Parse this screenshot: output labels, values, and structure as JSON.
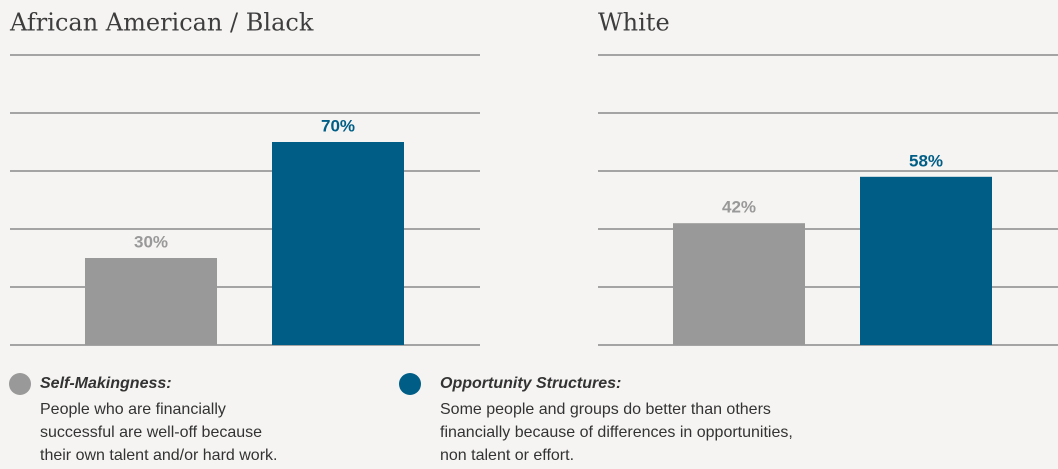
{
  "chart_data": [
    {
      "type": "bar",
      "title": "African American / Black",
      "categories": [
        null,
        null
      ],
      "values": [
        30,
        70
      ],
      "value_labels": [
        "30%",
        "70%"
      ],
      "colors": [
        "#999999",
        "#005e86"
      ],
      "ylim": [
        0,
        100
      ],
      "yticks": [
        0,
        20,
        40,
        60,
        80,
        100
      ],
      "grid": true
    },
    {
      "type": "bar",
      "title": "White",
      "categories": [
        null,
        null
      ],
      "values": [
        42,
        58
      ],
      "value_labels": [
        "42%",
        "58%"
      ],
      "colors": [
        "#999999",
        "#005e86"
      ],
      "ylim": [
        0,
        100
      ],
      "yticks": [
        0,
        20,
        40,
        60,
        80,
        100
      ],
      "grid": true
    }
  ],
  "legend": [
    {
      "name": "Self-Makingness:",
      "color": "#999999",
      "description": [
        "People who are financially",
        "successful are well-off because",
        "their own talent and/or hard work."
      ]
    },
    {
      "name": "Opportunity Structures:",
      "color": "#005e86",
      "description": [
        "Some people and groups do better than others",
        "financially because of differences in opportunities,",
        "non talent or effort."
      ]
    }
  ]
}
